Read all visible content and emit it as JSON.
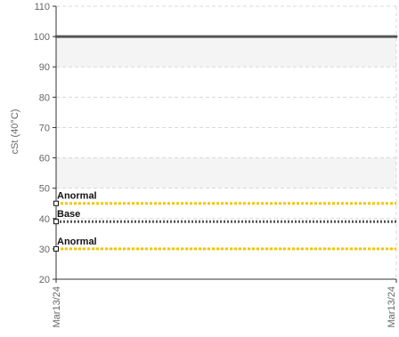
{
  "chart_data": {
    "type": "line",
    "ylabel": "cSt (40°C)",
    "xlabel": "",
    "ylim": [
      20,
      110
    ],
    "yticks": [
      20,
      30,
      40,
      50,
      60,
      70,
      80,
      90,
      100,
      110
    ],
    "x": [
      "Mar13/24",
      "Mar13/24"
    ],
    "grid": true,
    "series": [
      {
        "values": [
          100,
          100
        ],
        "color": "#555555"
      }
    ],
    "reference_lines": [
      {
        "label": "Anormal",
        "value": 45,
        "color": "#f2c800",
        "style": "dashed"
      },
      {
        "label": "Base",
        "value": 39,
        "color": "#555555",
        "style": "dotted"
      },
      {
        "label": "Anormal",
        "value": 30,
        "color": "#f2c800",
        "style": "dashed"
      }
    ],
    "bands": [
      {
        "from": 50,
        "to": 60,
        "color": "#f4f4f4"
      },
      {
        "from": 90,
        "to": 100,
        "color": "#f4f4f4"
      }
    ]
  }
}
